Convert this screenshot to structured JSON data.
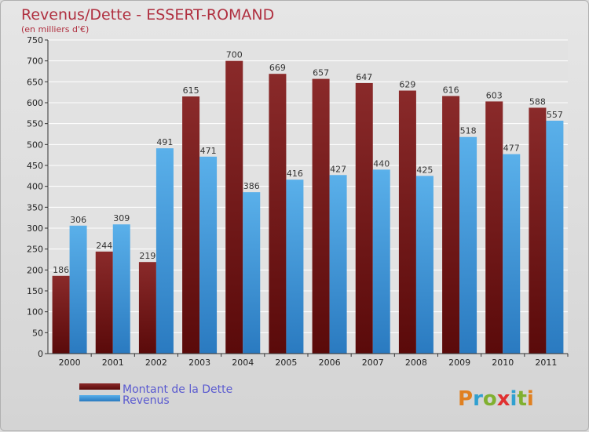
{
  "chart_data": {
    "type": "bar",
    "title": "Revenus/Dette - ESSERT-ROMAND",
    "subtitle": "(en milliers d'€)",
    "categories": [
      "2000",
      "2001",
      "2002",
      "2003",
      "2004",
      "2005",
      "2006",
      "2007",
      "2008",
      "2009",
      "2010",
      "2011"
    ],
    "series": [
      {
        "name": "Montant de la Dette",
        "values": [
          186,
          244,
          219,
          615,
          700,
          669,
          657,
          647,
          629,
          616,
          603,
          588
        ],
        "color": "#7a1a1a"
      },
      {
        "name": "Revenus",
        "values": [
          306,
          309,
          491,
          471,
          386,
          416,
          427,
          440,
          425,
          518,
          477,
          557
        ],
        "color": "#4a9fe0"
      }
    ],
    "ylim": [
      0,
      750
    ],
    "yticks": [
      0,
      50,
      100,
      150,
      200,
      250,
      300,
      350,
      400,
      450,
      500,
      550,
      600,
      650,
      700,
      750
    ],
    "grid": true,
    "legend": "bottom-left"
  },
  "brand": {
    "letters": [
      "P",
      "r",
      "o",
      "x",
      "i",
      "t",
      "i"
    ],
    "colors": [
      "#e08020",
      "#30a0d0",
      "#80b030",
      "#e03030",
      "#30a0d0",
      "#80b030",
      "#e08020"
    ]
  }
}
